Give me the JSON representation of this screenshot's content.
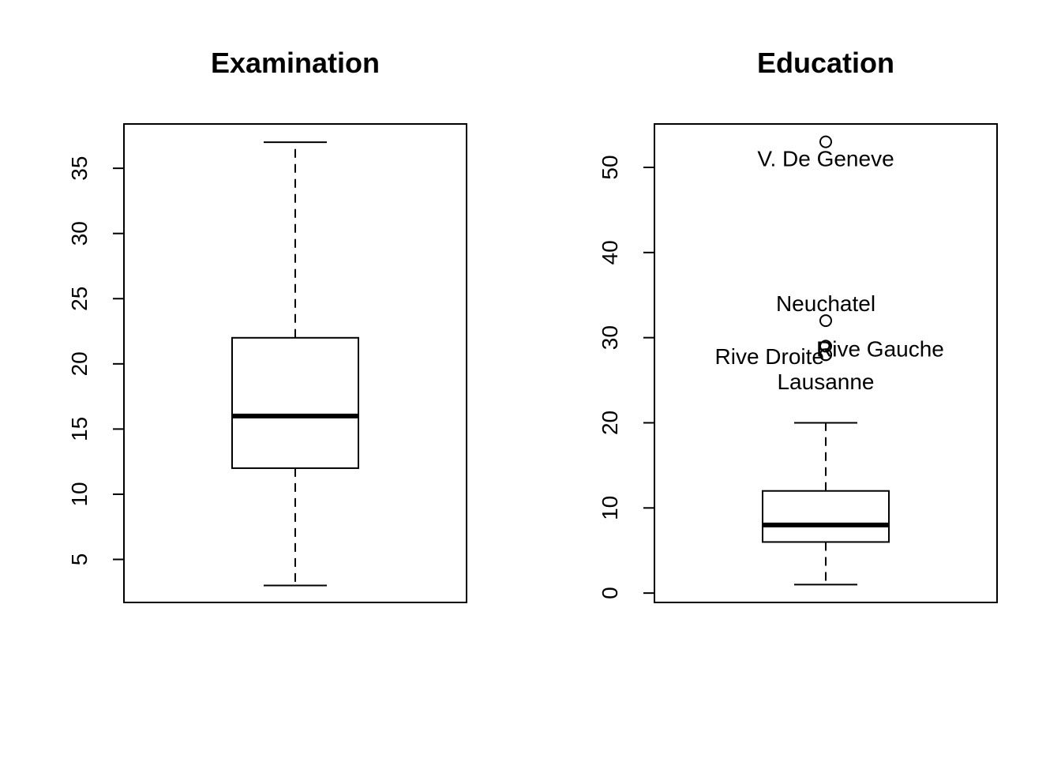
{
  "chart_data": [
    {
      "type": "box",
      "title": "Examination",
      "xlabel": "",
      "ylabel": "",
      "ylim": [
        1.7,
        38.4
      ],
      "yticks": [
        5,
        10,
        15,
        20,
        25,
        30,
        35
      ],
      "grid": false,
      "box": {
        "min": 3,
        "q1": 12,
        "median": 16,
        "q3": 22,
        "max": 37
      },
      "outliers": []
    },
    {
      "type": "box",
      "title": "Education",
      "xlabel": "",
      "ylabel": "",
      "ylim": [
        -1.1,
        55.1
      ],
      "yticks": [
        0,
        10,
        20,
        30,
        40,
        50
      ],
      "grid": false,
      "box": {
        "min": 1,
        "q1": 6,
        "median": 8,
        "q3": 12,
        "max": 20
      },
      "outliers": [
        {
          "value": 53,
          "label": "V. De Geneve"
        },
        {
          "value": 32,
          "label": "Neuchatel"
        },
        {
          "value": 29,
          "label": "Rive Gauche"
        },
        {
          "value": 28,
          "label": "Rive Droite"
        },
        {
          "value": 28,
          "label": "Lausanne"
        }
      ]
    }
  ]
}
